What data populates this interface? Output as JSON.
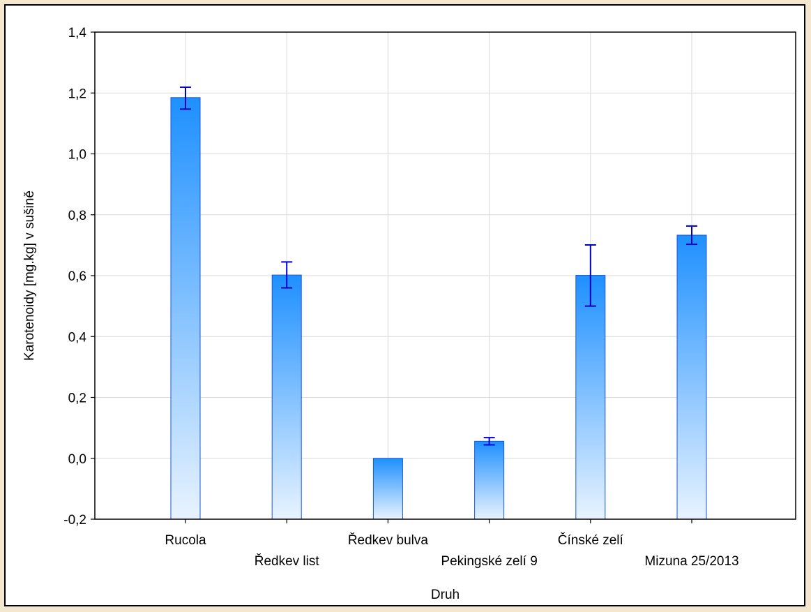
{
  "chart_data": {
    "type": "bar",
    "title": "",
    "xlabel": "Druh",
    "ylabel": "Karotenoidy [mg.kg] v sušině",
    "ylim": [
      -0.2,
      1.4
    ],
    "yticks": [
      "-0,2",
      "0,0",
      "0,2",
      "0,4",
      "0,6",
      "0,8",
      "1,0",
      "1,2",
      "1,4"
    ],
    "ytick_values": [
      -0.2,
      0.0,
      0.2,
      0.4,
      0.6,
      0.8,
      1.0,
      1.2,
      1.4
    ],
    "grid": true,
    "categories": [
      "Rucola",
      "Ředkev list",
      "Ředkev bulva",
      "Pekingské zelí 9",
      "Čínské zelí",
      "Mizuna 25/2013"
    ],
    "values": [
      1.185,
      0.602,
      0.0,
      0.056,
      0.601,
      0.733
    ],
    "error_low": [
      1.147,
      0.56,
      0.0,
      0.044,
      0.5,
      0.703
    ],
    "error_high": [
      1.219,
      0.645,
      0.0,
      0.068,
      0.701,
      0.763
    ],
    "colors": {
      "bar_top": "#1e90ff",
      "bar_bottom": "#e8f3ff",
      "bar_stroke": "#1a55d6",
      "error_bar": "#0000cc",
      "grid": "#d9d9d9"
    }
  }
}
